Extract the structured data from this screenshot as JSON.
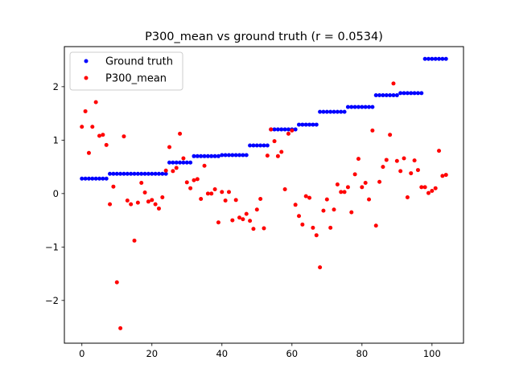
{
  "chart_data": {
    "type": "scatter",
    "title": "P300_mean vs ground truth (r = 0.0534)",
    "xlabel": "",
    "ylabel": "",
    "xlim": [
      -5,
      109
    ],
    "ylim": [
      -2.8,
      2.75
    ],
    "xticks": [
      0,
      20,
      40,
      60,
      80,
      100
    ],
    "yticks": [
      -2,
      -1,
      0,
      1,
      2
    ],
    "grid": false,
    "legend_position": "top-left",
    "colors": {
      "Ground truth": "#0000ff",
      "P300_mean": "#ff0000"
    },
    "series": [
      {
        "name": "Ground truth",
        "values": [
          0.28,
          0.28,
          0.28,
          0.28,
          0.28,
          0.28,
          0.28,
          0.28,
          0.37,
          0.37,
          0.37,
          0.37,
          0.37,
          0.37,
          0.37,
          0.37,
          0.37,
          0.37,
          0.37,
          0.37,
          0.37,
          0.37,
          0.37,
          0.37,
          0.37,
          0.58,
          0.58,
          0.58,
          0.58,
          0.58,
          0.58,
          0.58,
          0.7,
          0.7,
          0.7,
          0.7,
          0.7,
          0.7,
          0.7,
          0.7,
          0.72,
          0.72,
          0.72,
          0.72,
          0.72,
          0.72,
          0.72,
          0.72,
          0.9,
          0.9,
          0.9,
          0.9,
          0.9,
          0.9,
          1.2,
          1.2,
          1.2,
          1.2,
          1.2,
          1.2,
          1.2,
          1.2,
          1.29,
          1.29,
          1.29,
          1.29,
          1.29,
          1.29,
          1.53,
          1.53,
          1.53,
          1.53,
          1.53,
          1.53,
          1.53,
          1.53,
          1.62,
          1.62,
          1.62,
          1.62,
          1.62,
          1.62,
          1.62,
          1.62,
          1.84,
          1.84,
          1.84,
          1.84,
          1.84,
          1.84,
          1.84,
          1.88,
          1.88,
          1.88,
          1.88,
          1.88,
          1.88,
          1.88,
          2.52,
          2.52,
          2.52,
          2.52,
          2.52,
          2.52,
          2.52
        ]
      },
      {
        "name": "P300_mean",
        "values": [
          1.25,
          1.54,
          0.76,
          1.25,
          1.71,
          1.08,
          1.1,
          0.91,
          -0.2,
          0.13,
          -1.66,
          -2.52,
          1.07,
          -0.13,
          -0.2,
          -0.88,
          -0.17,
          0.2,
          0.02,
          -0.15,
          -0.12,
          -0.2,
          -0.28,
          -0.07,
          0.43,
          0.87,
          0.42,
          0.48,
          1.12,
          0.66,
          0.21,
          0.1,
          0.25,
          0.27,
          -0.1,
          0.52,
          0.0,
          0.0,
          0.08,
          -0.54,
          0.03,
          -0.13,
          0.03,
          -0.5,
          -0.12,
          -0.45,
          -0.48,
          -0.38,
          -0.51,
          -0.66,
          -0.3,
          -0.1,
          -0.65,
          0.71,
          1.2,
          0.98,
          0.7,
          0.78,
          0.08,
          1.12,
          1.18,
          -0.21,
          -0.42,
          -0.58,
          -0.05,
          -0.08,
          -0.64,
          -0.78,
          -1.38,
          -0.32,
          -0.11,
          -0.64,
          -0.3,
          0.17,
          0.03,
          0.03,
          0.12,
          -0.35,
          0.36,
          0.65,
          0.12,
          0.2,
          -0.11,
          1.18,
          -0.6,
          0.22,
          0.5,
          0.63,
          1.1,
          2.06,
          0.61,
          0.42,
          0.66,
          -0.07,
          0.38,
          0.62,
          0.44,
          0.12,
          0.12,
          0.01,
          0.05,
          0.1,
          0.8,
          0.33,
          0.35
        ]
      }
    ]
  }
}
